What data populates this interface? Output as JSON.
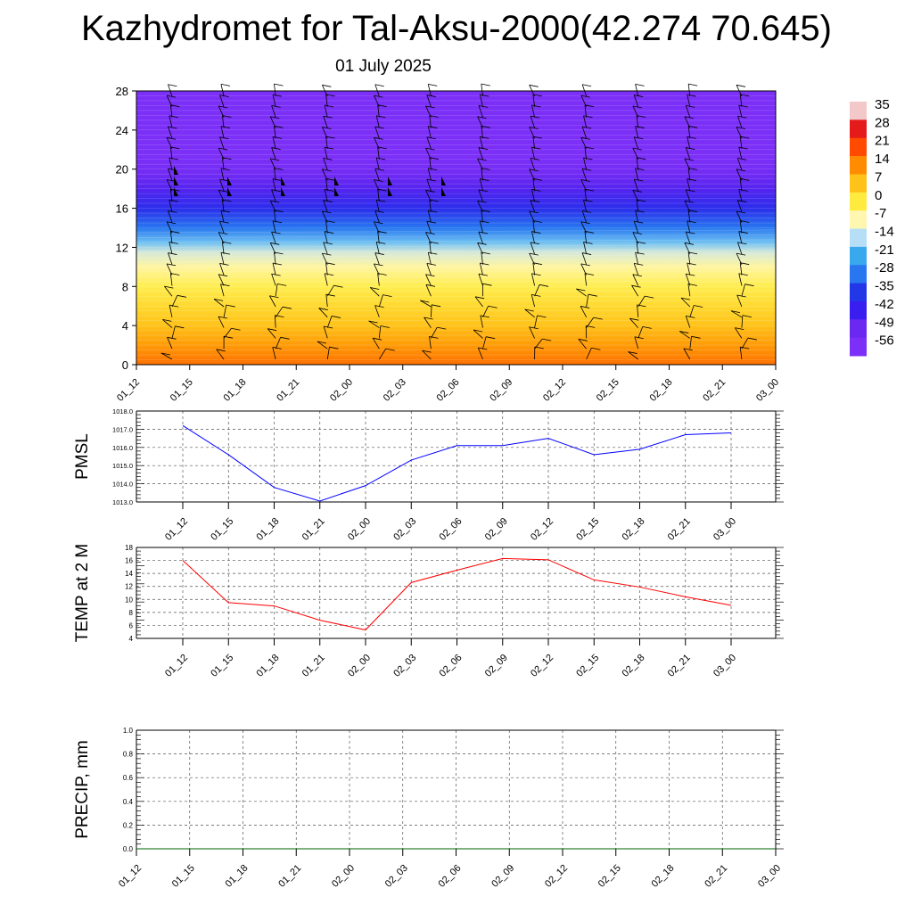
{
  "title": "Kazhydromet for Tal-Aksu-2000(42.274 70.645)",
  "subtitle": "01 July 2025",
  "chart_data": [
    {
      "type": "heatmap",
      "name": "temperature-profile",
      "x_ticks": [
        "01_12",
        "01_15",
        "01_18",
        "01_21",
        "02_00",
        "02_03",
        "02_06",
        "02_09",
        "02_12",
        "02_15",
        "02_18",
        "02_21",
        "03_00"
      ],
      "y_ticks": [
        0,
        4,
        8,
        12,
        16,
        20,
        24,
        28
      ],
      "ylim": [
        0,
        28
      ],
      "colorbar_labels": [
        "35",
        "28",
        "21",
        "14",
        "7",
        "0",
        "-7",
        "-14",
        "-21",
        "-28",
        "-35",
        "-42",
        "-49",
        "-56"
      ],
      "colorbar_colors": [
        "#f2c8c8",
        "#e51a1a",
        "#ff4a00",
        "#ff8c00",
        "#ffc21a",
        "#ffeb40",
        "#fff7b0",
        "#b6dff7",
        "#39a9ee",
        "#2877f0",
        "#2238e8",
        "#3a1ef0",
        "#6a28f0",
        "#7b2ff7"
      ],
      "temperature_levels": [
        {
          "height": 0,
          "temp": 17
        },
        {
          "height": 2,
          "temp": 12
        },
        {
          "height": 4,
          "temp": 7
        },
        {
          "height": 6,
          "temp": 3
        },
        {
          "height": 8,
          "temp": -1
        },
        {
          "height": 10,
          "temp": -6
        },
        {
          "height": 11.5,
          "temp": -11
        },
        {
          "height": 12.5,
          "temp": -18
        },
        {
          "height": 14,
          "temp": -28
        },
        {
          "height": 16,
          "temp": -38
        },
        {
          "height": 18,
          "temp": -46
        },
        {
          "height": 19.5,
          "temp": -52
        },
        {
          "height": 21,
          "temp": -56
        },
        {
          "height": 28,
          "temp": -58
        }
      ]
    },
    {
      "type": "line",
      "name": "pmsl",
      "ylabel": "PMSL",
      "categories": [
        "01_12",
        "01_15",
        "01_18",
        "01_21",
        "02_00",
        "02_03",
        "02_06",
        "02_09",
        "02_12",
        "02_15",
        "02_18",
        "02_21",
        "03_00"
      ],
      "values": [
        1017.2,
        1015.6,
        1013.8,
        1013.05,
        1013.9,
        1015.3,
        1016.1,
        1016.1,
        1016.5,
        1015.6,
        1015.9,
        1016.7,
        1016.8
      ],
      "ylim": [
        1013.0,
        1018.0
      ],
      "y_ticks": [
        "1013.0",
        "1014.0",
        "1015.0",
        "1016.0",
        "1017.0",
        "1018.0"
      ],
      "color": "#0000ff",
      "grid": true
    },
    {
      "type": "line",
      "name": "temp-2m",
      "ylabel": "TEMP at 2 M",
      "categories": [
        "01_12",
        "01_15",
        "01_18",
        "01_21",
        "02_00",
        "02_03",
        "02_06",
        "02_09",
        "02_12",
        "02_15",
        "02_18",
        "02_21",
        "03_00"
      ],
      "values": [
        16.0,
        9.5,
        9.0,
        6.8,
        5.3,
        12.6,
        14.5,
        16.3,
        16.1,
        13.0,
        11.9,
        10.4,
        9.1
      ],
      "ylim": [
        4,
        18
      ],
      "y_ticks": [
        "4",
        "6",
        "8",
        "10",
        "12",
        "14",
        "16",
        "18"
      ],
      "color": "#ff0000",
      "grid": true
    },
    {
      "type": "line",
      "name": "precip",
      "ylabel": "PRECIP, mm",
      "categories": [
        "01_12",
        "01_15",
        "01_18",
        "01_21",
        "02_00",
        "02_03",
        "02_06",
        "02_09",
        "02_12",
        "02_15",
        "02_18",
        "02_21",
        "03_00"
      ],
      "values": [
        0,
        0,
        0,
        0,
        0,
        0,
        0,
        0,
        0,
        0,
        0,
        0,
        0
      ],
      "ylim": [
        0.0,
        1.0
      ],
      "y_ticks": [
        "0.0",
        "0.2",
        "0.4",
        "0.6",
        "0.8",
        "1.0"
      ],
      "color": "#006400",
      "grid": true
    }
  ]
}
